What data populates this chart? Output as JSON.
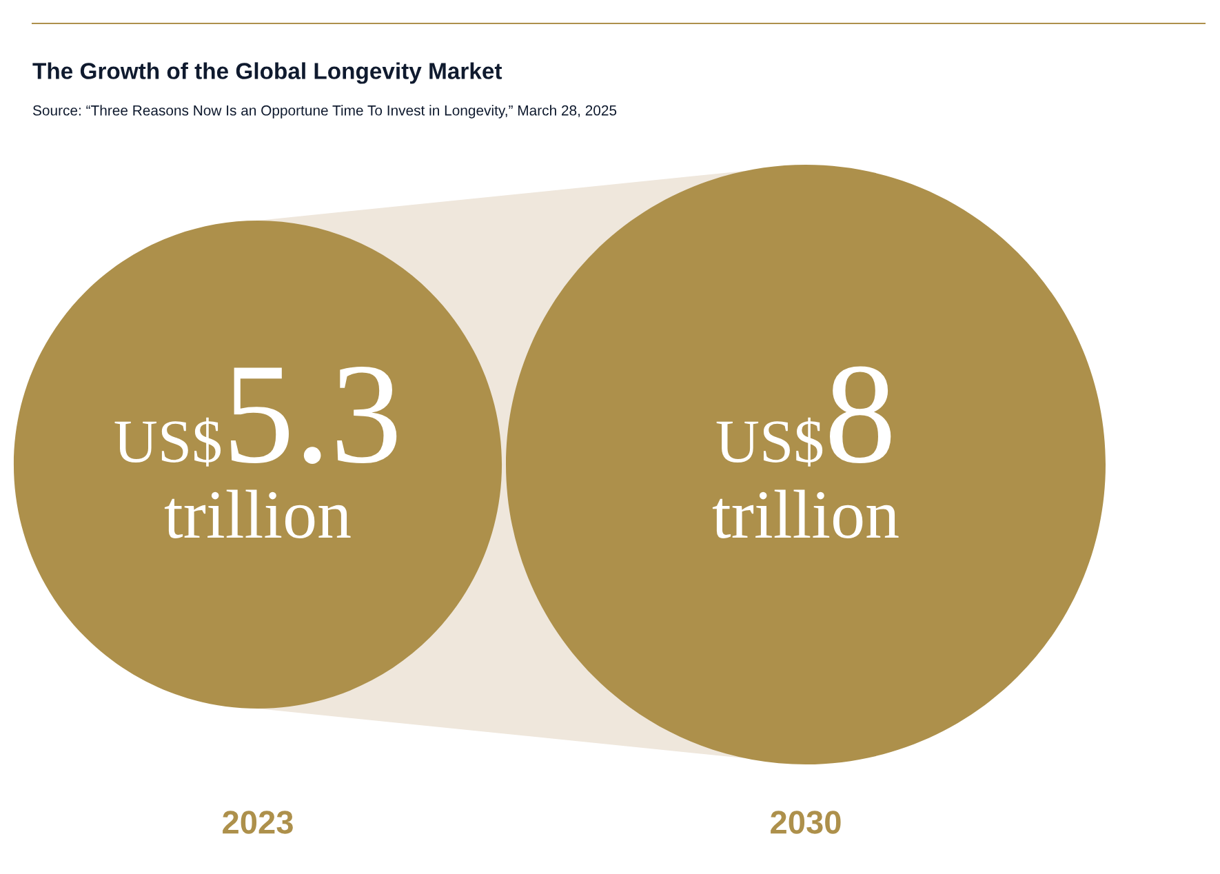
{
  "chart_data": {
    "type": "other",
    "title": "The Growth of the Global Longevity Market",
    "annotations": [
      "Source: “Three Reasons Now Is an Opportune Time To Invest in Longevity,” March 28, 2025"
    ],
    "categories": [
      "2023",
      "2030"
    ],
    "values": [
      5.3,
      8
    ],
    "value_labels": [
      "US$5.3 trillion",
      "US$8 trillion"
    ],
    "color": "#ad904b"
  }
}
